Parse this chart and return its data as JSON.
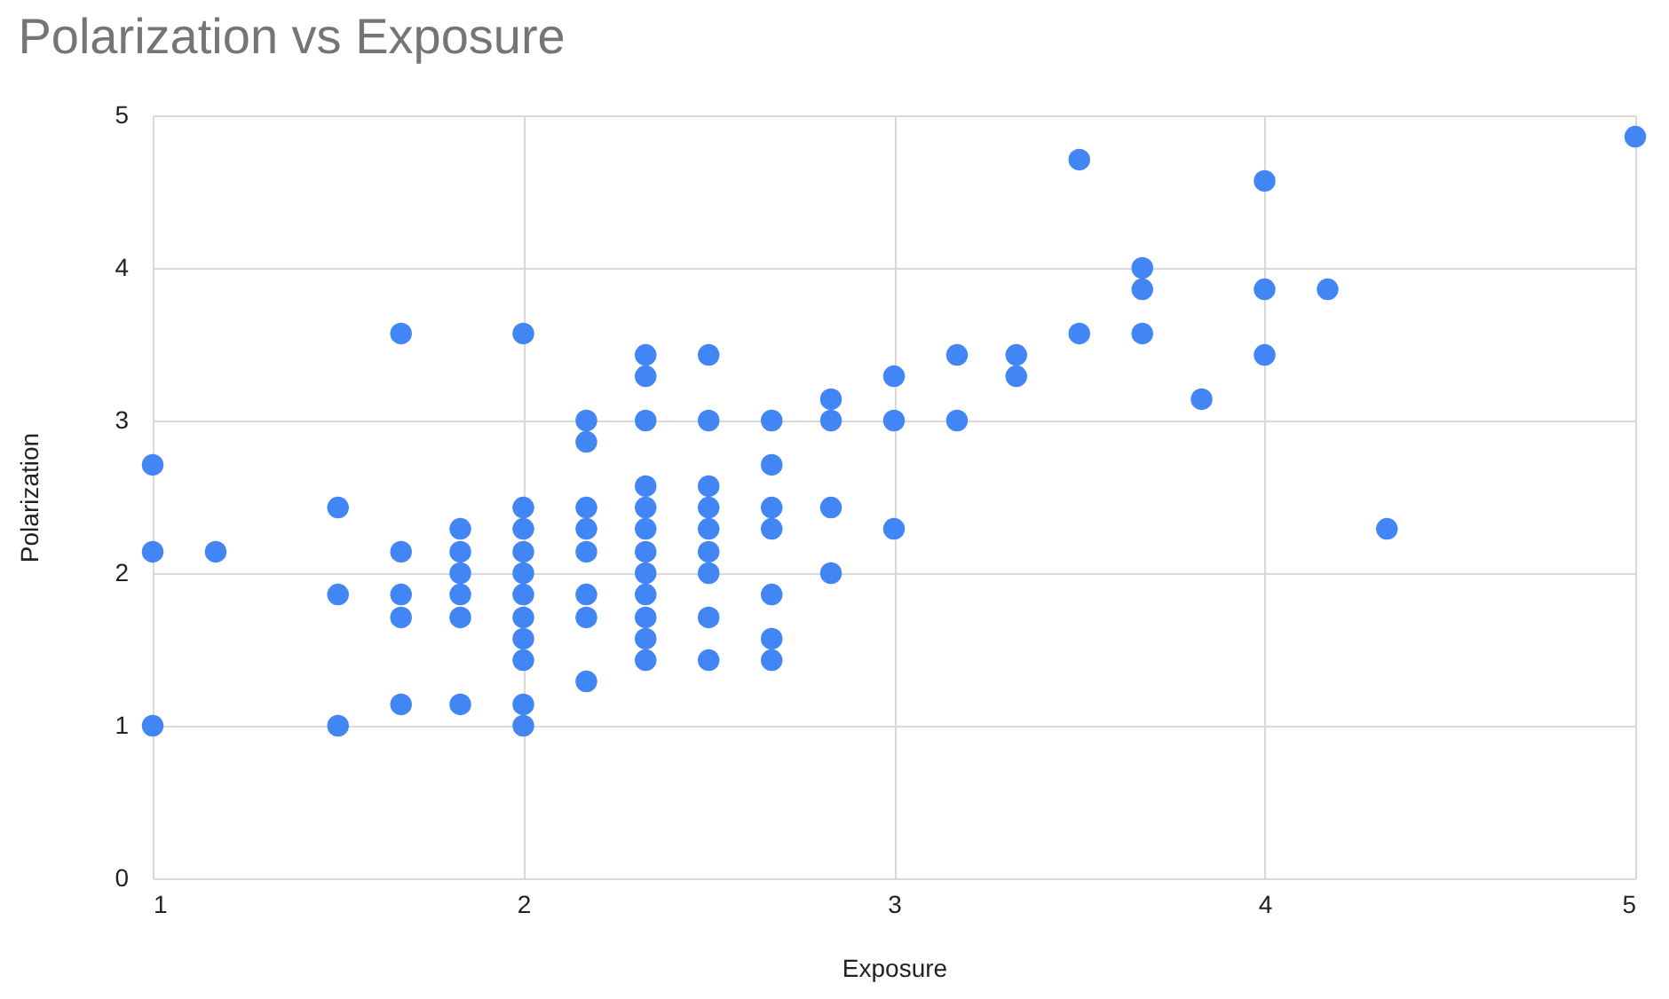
{
  "chart_data": {
    "type": "scatter",
    "title": "Polarization  vs Exposure",
    "xlabel": "Exposure",
    "ylabel": "Polarization",
    "xlim": [
      1,
      5
    ],
    "xticks": [
      1,
      2,
      3,
      4,
      5
    ],
    "ylim": [
      0,
      5
    ],
    "yticks": [
      0,
      1,
      2,
      3,
      4,
      5
    ],
    "grid": true,
    "marker": "circle",
    "series": [
      {
        "color": "#4285f4",
        "x": [
          1,
          1,
          1,
          1.17,
          1.5,
          1.5,
          1.5,
          1.67,
          1.67,
          1.67,
          1.67,
          1.67,
          1.83,
          1.83,
          1.83,
          1.83,
          1.83,
          1.83,
          2,
          2,
          2,
          2,
          2,
          2,
          2,
          2,
          2,
          2,
          2,
          2.17,
          2.17,
          2.17,
          2.17,
          2.17,
          2.17,
          2.17,
          2.17,
          2.33,
          2.33,
          2.33,
          2.33,
          2.33,
          2.33,
          2.33,
          2.33,
          2.33,
          2.33,
          2.33,
          2.33,
          2.5,
          2.5,
          2.5,
          2.5,
          2.5,
          2.5,
          2.5,
          2.5,
          2.5,
          2.67,
          2.67,
          2.67,
          2.67,
          2.67,
          2.67,
          2.67,
          2.83,
          2.83,
          2.83,
          2.83,
          3,
          3,
          3,
          3.17,
          3.17,
          3.33,
          3.33,
          3.5,
          3.5,
          3.67,
          3.67,
          3.67,
          3.83,
          4,
          4,
          4,
          4.17,
          4.33,
          5
        ],
        "values": [
          1,
          2.14,
          2.71,
          2.14,
          1,
          1.86,
          2.43,
          1.14,
          1.71,
          1.86,
          2.14,
          3.57,
          1.14,
          1.71,
          1.86,
          2,
          2.14,
          2.29,
          1,
          1.14,
          1.43,
          1.57,
          1.71,
          1.86,
          2,
          2.14,
          2.29,
          2.43,
          3.57,
          1.29,
          1.71,
          1.86,
          2.14,
          2.29,
          2.43,
          2.86,
          3,
          1.43,
          1.57,
          1.71,
          1.86,
          2,
          2.14,
          2.29,
          2.43,
          2.57,
          3,
          3.29,
          3.43,
          1.43,
          1.71,
          2,
          2.14,
          2.29,
          2.43,
          2.57,
          3,
          3.43,
          1.43,
          1.57,
          1.86,
          2.29,
          2.43,
          2.71,
          3,
          2,
          2.43,
          3,
          3.14,
          2.29,
          3,
          3.29,
          3,
          3.43,
          3.29,
          3.43,
          3.57,
          4.71,
          3.57,
          3.86,
          4,
          3.14,
          3.43,
          3.86,
          4.57,
          3.86,
          2.29,
          4.86
        ]
      }
    ]
  }
}
